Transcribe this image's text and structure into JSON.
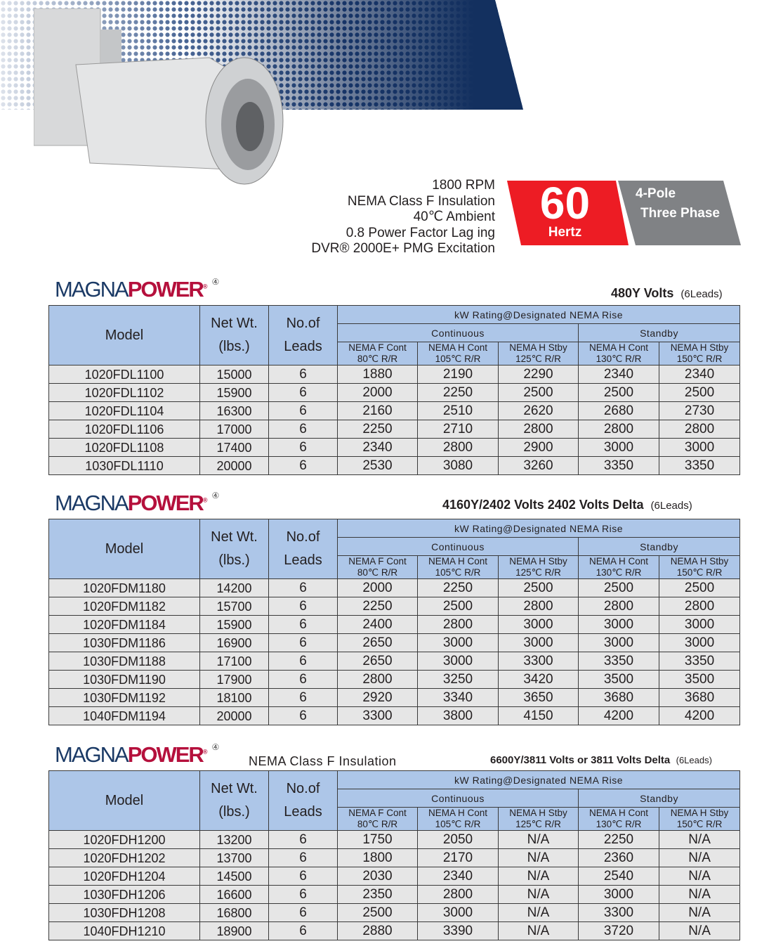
{
  "specs": [
    "1800 RPM",
    "NEMA Class F Insulation",
    "40℃ Ambient",
    "0.8 Power Factor Lag   ing",
    "DVR® 2000E+ PMG Excitation"
  ],
  "badge": {
    "number": "60",
    "unit": "Hertz",
    "line1": "4-Pole",
    "line2": "Three Phase",
    "red": "#ed1c24",
    "gray": "#808285"
  },
  "logo": {
    "part1": "MAGNA",
    "part2": "POWER",
    "reg": "®",
    "mark": "④"
  },
  "headers": {
    "model": "Model",
    "netwt1": "Net Wt.",
    "netwt2": "(lbs.)",
    "leads1": "No.of",
    "leads2": "Leads",
    "kw": "kW Rating@Designated NEMA Rise",
    "cont": "Continuous",
    "stby": "Standby",
    "cols": [
      [
        "NEMA F Cont",
        "80℃ R/R"
      ],
      [
        "NEMA H Cont",
        "105℃ R/R"
      ],
      [
        "NEMA H Stby",
        "125℃ R/R"
      ],
      [
        "NEMA H Cont",
        "130℃ R/R"
      ],
      [
        "NEMA H Stby",
        "150℃ R/R"
      ]
    ]
  },
  "tables": [
    {
      "volts": "480Y  Volts",
      "leads": "(6Leads)",
      "rows": [
        [
          "1020FDL1100",
          "15000",
          "6",
          "1880",
          "2190",
          "2290",
          "2340",
          "2340"
        ],
        [
          "1020FDL1102",
          "15900",
          "6",
          "2000",
          "2250",
          "2500",
          "2500",
          "2500"
        ],
        [
          "1020FDL1104",
          "16300",
          "6",
          "2160",
          "2510",
          "2620",
          "2680",
          "2730"
        ],
        [
          "1020FDL1106",
          "17000",
          "6",
          "2250",
          "2710",
          "2800",
          "2800",
          "2800"
        ],
        [
          "1020FDL1108",
          "17400",
          "6",
          "2340",
          "2800",
          "2900",
          "3000",
          "3000"
        ],
        [
          "1030FDL1110",
          "20000",
          "6",
          "2530",
          "3080",
          "3260",
          "3350",
          "3350"
        ]
      ]
    },
    {
      "volts": "4160Y/2402  Volts   2402  Volts Delta",
      "leads": "(6Leads)",
      "rows": [
        [
          "1020FDM1180",
          "14200",
          "6",
          "2000",
          "2250",
          "2500",
          "2500",
          "2500"
        ],
        [
          "1020FDM1182",
          "15700",
          "6",
          "2250",
          "2500",
          "2800",
          "2800",
          "2800"
        ],
        [
          "1020FDM1184",
          "15900",
          "6",
          "2400",
          "2800",
          "3000",
          "3000",
          "3000"
        ],
        [
          "1030FDM1186",
          "16900",
          "6",
          "2650",
          "3000",
          "3000",
          "3000",
          "3000"
        ],
        [
          "1030FDM1188",
          "17100",
          "6",
          "2650",
          "3000",
          "3300",
          "3350",
          "3350"
        ],
        [
          "1030FDM1190",
          "17900",
          "6",
          "2800",
          "3250",
          "3420",
          "3500",
          "3500"
        ],
        [
          "1030FDM1192",
          "18100",
          "6",
          "2920",
          "3340",
          "3650",
          "3680",
          "3680"
        ],
        [
          "1040FDM1194",
          "20000",
          "6",
          "3300",
          "3800",
          "4150",
          "4200",
          "4200"
        ]
      ]
    },
    {
      "insulation": "NEMA Class  F Insulation",
      "volts": "6600Y/3811  Volts or 3811 Volts Delta",
      "leads": "(6Leads)",
      "rows": [
        [
          "1020FDH1200",
          "13200",
          "6",
          "1750",
          "2050",
          "N/A",
          "2250",
          "N/A"
        ],
        [
          "1020FDH1202",
          "13700",
          "6",
          "1800",
          "2170",
          "N/A",
          "2360",
          "N/A"
        ],
        [
          "1020FDH1204",
          "14500",
          "6",
          "2030",
          "2340",
          "N/A",
          "2540",
          "N/A"
        ],
        [
          "1030FDH1206",
          "16600",
          "6",
          "2350",
          "2800",
          "N/A",
          "3000",
          "N/A"
        ],
        [
          "1030FDH1208",
          "16800",
          "6",
          "2500",
          "3000",
          "N/A",
          "3300",
          "N/A"
        ],
        [
          "1040FDH1210",
          "18900",
          "6",
          "2880",
          "3390",
          "N/A",
          "3720",
          "N/A"
        ]
      ]
    }
  ]
}
